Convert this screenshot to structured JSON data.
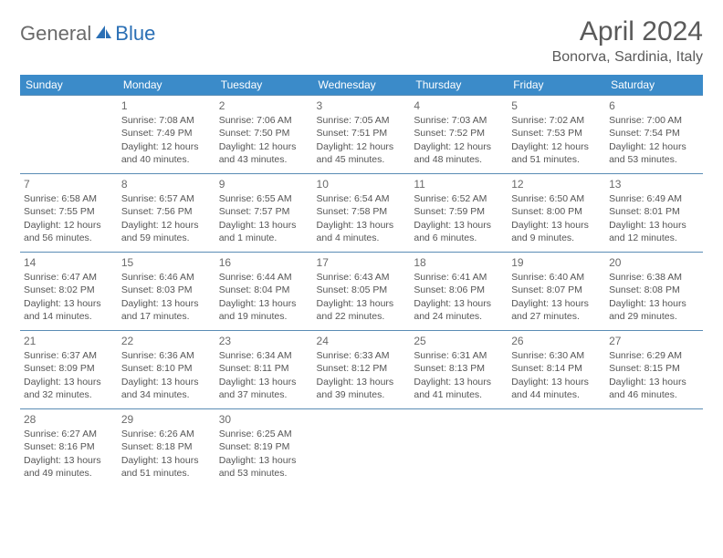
{
  "branding": {
    "logo_part1": "General",
    "logo_part2": "Blue",
    "logo_colors": {
      "part1": "#6a6a6a",
      "part2": "#2a6fb5",
      "icon": "#2a6fb5"
    }
  },
  "header": {
    "title": "April 2024",
    "location": "Bonorva, Sardinia, Italy"
  },
  "styling": {
    "header_bg": "#3b8bc9",
    "header_text": "#ffffff",
    "row_border": "#5a8cb5",
    "body_text": "#555555",
    "page_bg": "#ffffff",
    "daynum_color": "#6a6a6a",
    "font_family": "Arial",
    "cell_font_size_pt": 8,
    "daynum_font_size_pt": 9,
    "header_font_size_pt": 9,
    "title_font_size_pt": 22,
    "location_font_size_pt": 12
  },
  "days_of_week": [
    "Sunday",
    "Monday",
    "Tuesday",
    "Wednesday",
    "Thursday",
    "Friday",
    "Saturday"
  ],
  "weeks": [
    [
      null,
      {
        "n": "1",
        "sunrise": "Sunrise: 7:08 AM",
        "sunset": "Sunset: 7:49 PM",
        "daylight": "Daylight: 12 hours and 40 minutes."
      },
      {
        "n": "2",
        "sunrise": "Sunrise: 7:06 AM",
        "sunset": "Sunset: 7:50 PM",
        "daylight": "Daylight: 12 hours and 43 minutes."
      },
      {
        "n": "3",
        "sunrise": "Sunrise: 7:05 AM",
        "sunset": "Sunset: 7:51 PM",
        "daylight": "Daylight: 12 hours and 45 minutes."
      },
      {
        "n": "4",
        "sunrise": "Sunrise: 7:03 AM",
        "sunset": "Sunset: 7:52 PM",
        "daylight": "Daylight: 12 hours and 48 minutes."
      },
      {
        "n": "5",
        "sunrise": "Sunrise: 7:02 AM",
        "sunset": "Sunset: 7:53 PM",
        "daylight": "Daylight: 12 hours and 51 minutes."
      },
      {
        "n": "6",
        "sunrise": "Sunrise: 7:00 AM",
        "sunset": "Sunset: 7:54 PM",
        "daylight": "Daylight: 12 hours and 53 minutes."
      }
    ],
    [
      {
        "n": "7",
        "sunrise": "Sunrise: 6:58 AM",
        "sunset": "Sunset: 7:55 PM",
        "daylight": "Daylight: 12 hours and 56 minutes."
      },
      {
        "n": "8",
        "sunrise": "Sunrise: 6:57 AM",
        "sunset": "Sunset: 7:56 PM",
        "daylight": "Daylight: 12 hours and 59 minutes."
      },
      {
        "n": "9",
        "sunrise": "Sunrise: 6:55 AM",
        "sunset": "Sunset: 7:57 PM",
        "daylight": "Daylight: 13 hours and 1 minute."
      },
      {
        "n": "10",
        "sunrise": "Sunrise: 6:54 AM",
        "sunset": "Sunset: 7:58 PM",
        "daylight": "Daylight: 13 hours and 4 minutes."
      },
      {
        "n": "11",
        "sunrise": "Sunrise: 6:52 AM",
        "sunset": "Sunset: 7:59 PM",
        "daylight": "Daylight: 13 hours and 6 minutes."
      },
      {
        "n": "12",
        "sunrise": "Sunrise: 6:50 AM",
        "sunset": "Sunset: 8:00 PM",
        "daylight": "Daylight: 13 hours and 9 minutes."
      },
      {
        "n": "13",
        "sunrise": "Sunrise: 6:49 AM",
        "sunset": "Sunset: 8:01 PM",
        "daylight": "Daylight: 13 hours and 12 minutes."
      }
    ],
    [
      {
        "n": "14",
        "sunrise": "Sunrise: 6:47 AM",
        "sunset": "Sunset: 8:02 PM",
        "daylight": "Daylight: 13 hours and 14 minutes."
      },
      {
        "n": "15",
        "sunrise": "Sunrise: 6:46 AM",
        "sunset": "Sunset: 8:03 PM",
        "daylight": "Daylight: 13 hours and 17 minutes."
      },
      {
        "n": "16",
        "sunrise": "Sunrise: 6:44 AM",
        "sunset": "Sunset: 8:04 PM",
        "daylight": "Daylight: 13 hours and 19 minutes."
      },
      {
        "n": "17",
        "sunrise": "Sunrise: 6:43 AM",
        "sunset": "Sunset: 8:05 PM",
        "daylight": "Daylight: 13 hours and 22 minutes."
      },
      {
        "n": "18",
        "sunrise": "Sunrise: 6:41 AM",
        "sunset": "Sunset: 8:06 PM",
        "daylight": "Daylight: 13 hours and 24 minutes."
      },
      {
        "n": "19",
        "sunrise": "Sunrise: 6:40 AM",
        "sunset": "Sunset: 8:07 PM",
        "daylight": "Daylight: 13 hours and 27 minutes."
      },
      {
        "n": "20",
        "sunrise": "Sunrise: 6:38 AM",
        "sunset": "Sunset: 8:08 PM",
        "daylight": "Daylight: 13 hours and 29 minutes."
      }
    ],
    [
      {
        "n": "21",
        "sunrise": "Sunrise: 6:37 AM",
        "sunset": "Sunset: 8:09 PM",
        "daylight": "Daylight: 13 hours and 32 minutes."
      },
      {
        "n": "22",
        "sunrise": "Sunrise: 6:36 AM",
        "sunset": "Sunset: 8:10 PM",
        "daylight": "Daylight: 13 hours and 34 minutes."
      },
      {
        "n": "23",
        "sunrise": "Sunrise: 6:34 AM",
        "sunset": "Sunset: 8:11 PM",
        "daylight": "Daylight: 13 hours and 37 minutes."
      },
      {
        "n": "24",
        "sunrise": "Sunrise: 6:33 AM",
        "sunset": "Sunset: 8:12 PM",
        "daylight": "Daylight: 13 hours and 39 minutes."
      },
      {
        "n": "25",
        "sunrise": "Sunrise: 6:31 AM",
        "sunset": "Sunset: 8:13 PM",
        "daylight": "Daylight: 13 hours and 41 minutes."
      },
      {
        "n": "26",
        "sunrise": "Sunrise: 6:30 AM",
        "sunset": "Sunset: 8:14 PM",
        "daylight": "Daylight: 13 hours and 44 minutes."
      },
      {
        "n": "27",
        "sunrise": "Sunrise: 6:29 AM",
        "sunset": "Sunset: 8:15 PM",
        "daylight": "Daylight: 13 hours and 46 minutes."
      }
    ],
    [
      {
        "n": "28",
        "sunrise": "Sunrise: 6:27 AM",
        "sunset": "Sunset: 8:16 PM",
        "daylight": "Daylight: 13 hours and 49 minutes."
      },
      {
        "n": "29",
        "sunrise": "Sunrise: 6:26 AM",
        "sunset": "Sunset: 8:18 PM",
        "daylight": "Daylight: 13 hours and 51 minutes."
      },
      {
        "n": "30",
        "sunrise": "Sunrise: 6:25 AM",
        "sunset": "Sunset: 8:19 PM",
        "daylight": "Daylight: 13 hours and 53 minutes."
      },
      null,
      null,
      null,
      null
    ]
  ]
}
